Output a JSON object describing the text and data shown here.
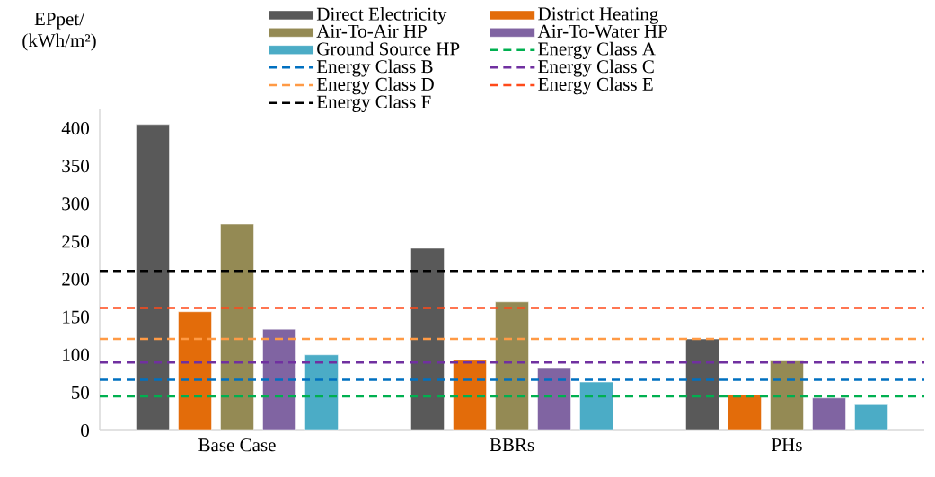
{
  "chart_data": {
    "type": "bar",
    "ylabel": "EPpet/ (kWh/m²)",
    "categories": [
      "Base Case",
      "BBRs",
      "PHs"
    ],
    "series": [
      {
        "name": "Direct Electricity",
        "color": "#595959",
        "values": [
          405,
          241,
          121
        ]
      },
      {
        "name": "District Heating",
        "color": "#e36c0a",
        "values": [
          157,
          93,
          47
        ]
      },
      {
        "name": "Air-To-Air HP",
        "color": "#948a54",
        "values": [
          273,
          170,
          92
        ]
      },
      {
        "name": "Air-To-Water HP",
        "color": "#8064a2",
        "values": [
          134,
          83,
          43
        ]
      },
      {
        "name": "Ground Source HP",
        "color": "#4bacc6",
        "values": [
          100,
          64,
          34
        ]
      }
    ],
    "ref_lines": [
      {
        "axis": "y",
        "value": 45,
        "label": "Energy Class A",
        "color": "#00b050",
        "line_style": "dashed"
      },
      {
        "axis": "y",
        "value": 67,
        "label": "Energy Class B",
        "color": "#0070c0",
        "line_style": "dashed"
      },
      {
        "axis": "y",
        "value": 90,
        "label": "Energy Class C",
        "color": "#7030a0",
        "line_style": "dashed"
      },
      {
        "axis": "y",
        "value": 121,
        "label": "Energy Class D",
        "color": "#ff9a45",
        "line_style": "dashed"
      },
      {
        "axis": "y",
        "value": 162,
        "label": "Energy Class E",
        "color": "#ff4a1a",
        "line_style": "dashed"
      },
      {
        "axis": "y",
        "value": 211,
        "label": "Energy Class F",
        "color": "#000000",
        "line_style": "dashed"
      }
    ],
    "ylim": [
      0,
      425
    ],
    "yticks": [
      0,
      50,
      100,
      150,
      200,
      250,
      300,
      350,
      400
    ],
    "grid": false,
    "legend": "top"
  }
}
